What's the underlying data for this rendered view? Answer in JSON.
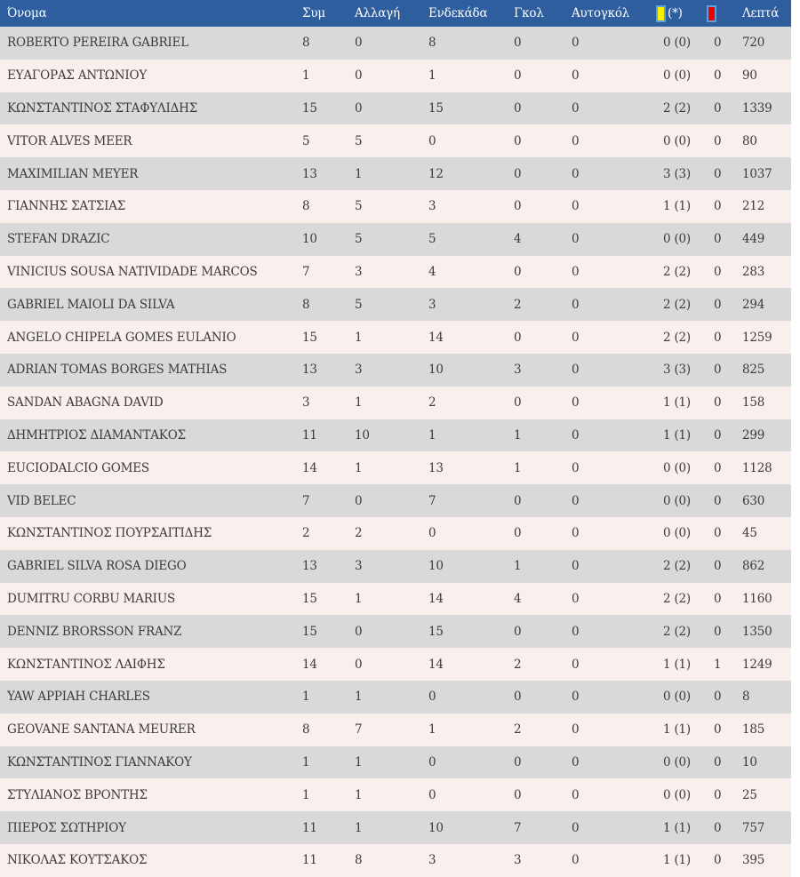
{
  "colors": {
    "header_bg": "#2e5e9e",
    "header_fg": "#ffffff",
    "row_odd": "#d9d9d9",
    "row_even": "#f9efed",
    "cell_fg": "#3b3b3b",
    "yellow_card": "#f8ee00",
    "red_card": "#ec0000",
    "card_border": "#5aa3da"
  },
  "table": {
    "header": {
      "name": "Όνομα",
      "appearances": "Συμ",
      "substitution": "Αλλαγή",
      "starting_eleven": "Ενδεκάδα",
      "goals": "Γκολ",
      "own_goals": "Αυτογκόλ",
      "yellow_cards_icon": "yellow-card-icon",
      "yellow_cards_suffix": "(*)",
      "red_cards_icon": "red-card-icon",
      "minutes": "Λεπτά"
    },
    "rows": [
      {
        "name": "ROBERTO PEREIRA GABRIEL",
        "appearances": "8",
        "substitution": "0",
        "starting_eleven": "8",
        "goals": "0",
        "own_goals": "0",
        "yellow_cards": "0 (0)",
        "red_cards": "0",
        "minutes": "720"
      },
      {
        "name": "ΕΥΑΓΟΡΑΣ ΑΝΤΩΝΙΟΥ",
        "appearances": "1",
        "substitution": "0",
        "starting_eleven": "1",
        "goals": "0",
        "own_goals": "0",
        "yellow_cards": "0 (0)",
        "red_cards": "0",
        "minutes": "90"
      },
      {
        "name": "ΚΩΝΣΤΑΝΤΙΝΟΣ ΣΤΑΦΥΛΙΔΗΣ",
        "appearances": "15",
        "substitution": "0",
        "starting_eleven": "15",
        "goals": "0",
        "own_goals": "0",
        "yellow_cards": "2 (2)",
        "red_cards": "0",
        "minutes": "1339"
      },
      {
        "name": "VITOR ALVES MEER",
        "appearances": "5",
        "substitution": "5",
        "starting_eleven": "0",
        "goals": "0",
        "own_goals": "0",
        "yellow_cards": "0 (0)",
        "red_cards": "0",
        "minutes": "80"
      },
      {
        "name": "MAXIMILIAN MEYER",
        "appearances": "13",
        "substitution": "1",
        "starting_eleven": "12",
        "goals": "0",
        "own_goals": "0",
        "yellow_cards": "3 (3)",
        "red_cards": "0",
        "minutes": "1037"
      },
      {
        "name": "ΓΙΑΝΝΗΣ ΣΑΤΣΙΑΣ",
        "appearances": "8",
        "substitution": "5",
        "starting_eleven": "3",
        "goals": "0",
        "own_goals": "0",
        "yellow_cards": "1 (1)",
        "red_cards": "0",
        "minutes": "212"
      },
      {
        "name": "STEFAN DRAZIC",
        "appearances": "10",
        "substitution": "5",
        "starting_eleven": "5",
        "goals": "4",
        "own_goals": "0",
        "yellow_cards": "0 (0)",
        "red_cards": "0",
        "minutes": "449"
      },
      {
        "name": "VINICIUS SOUSA NATIVIDADE MARCOS",
        "appearances": "7",
        "substitution": "3",
        "starting_eleven": "4",
        "goals": "0",
        "own_goals": "0",
        "yellow_cards": "2 (2)",
        "red_cards": "0",
        "minutes": "283"
      },
      {
        "name": "GABRIEL MAIOLI DA SILVA",
        "appearances": "8",
        "substitution": "5",
        "starting_eleven": "3",
        "goals": "2",
        "own_goals": "0",
        "yellow_cards": "2 (2)",
        "red_cards": "0",
        "minutes": "294"
      },
      {
        "name": "ANGELO CHIPELA GOMES EULANIO",
        "appearances": "15",
        "substitution": "1",
        "starting_eleven": "14",
        "goals": "0",
        "own_goals": "0",
        "yellow_cards": "2 (2)",
        "red_cards": "0",
        "minutes": "1259"
      },
      {
        "name": "ADRIAN TOMAS BORGES MATHIAS",
        "appearances": "13",
        "substitution": "3",
        "starting_eleven": "10",
        "goals": "3",
        "own_goals": "0",
        "yellow_cards": "3 (3)",
        "red_cards": "0",
        "minutes": "825"
      },
      {
        "name": "SANDAN ABAGNA DAVID",
        "appearances": "3",
        "substitution": "1",
        "starting_eleven": "2",
        "goals": "0",
        "own_goals": "0",
        "yellow_cards": "1 (1)",
        "red_cards": "0",
        "minutes": "158"
      },
      {
        "name": "ΔΗΜΗΤΡΙΟΣ ΔΙΑΜΑΝΤΑΚΟΣ",
        "appearances": "11",
        "substitution": "10",
        "starting_eleven": "1",
        "goals": "1",
        "own_goals": "0",
        "yellow_cards": "1 (1)",
        "red_cards": "0",
        "minutes": "299"
      },
      {
        "name": "EUCIODALCIO GOMES",
        "appearances": "14",
        "substitution": "1",
        "starting_eleven": "13",
        "goals": "1",
        "own_goals": "0",
        "yellow_cards": "0 (0)",
        "red_cards": "0",
        "minutes": "1128"
      },
      {
        "name": "VID BELEC",
        "appearances": "7",
        "substitution": "0",
        "starting_eleven": "7",
        "goals": "0",
        "own_goals": "0",
        "yellow_cards": "0 (0)",
        "red_cards": "0",
        "minutes": "630"
      },
      {
        "name": "ΚΩΝΣΤΑΝΤΙΝΟΣ ΠΟΥΡΣΑΙΤΙΔΗΣ",
        "appearances": "2",
        "substitution": "2",
        "starting_eleven": "0",
        "goals": "0",
        "own_goals": "0",
        "yellow_cards": "0 (0)",
        "red_cards": "0",
        "minutes": "45"
      },
      {
        "name": "GABRIEL SILVA ROSA DIEGO",
        "appearances": "13",
        "substitution": "3",
        "starting_eleven": "10",
        "goals": "1",
        "own_goals": "0",
        "yellow_cards": "2 (2)",
        "red_cards": "0",
        "minutes": "862"
      },
      {
        "name": "DUMITRU CORBU MARIUS",
        "appearances": "15",
        "substitution": "1",
        "starting_eleven": "14",
        "goals": "4",
        "own_goals": "0",
        "yellow_cards": "2 (2)",
        "red_cards": "0",
        "minutes": "1160"
      },
      {
        "name": "DENNIZ BRORSSON FRANZ",
        "appearances": "15",
        "substitution": "0",
        "starting_eleven": "15",
        "goals": "0",
        "own_goals": "0",
        "yellow_cards": "2 (2)",
        "red_cards": "0",
        "minutes": "1350"
      },
      {
        "name": "ΚΩΝΣΤΑΝΤΙΝΟΣ ΛΑΙΦΗΣ",
        "appearances": "14",
        "substitution": "0",
        "starting_eleven": "14",
        "goals": "2",
        "own_goals": "0",
        "yellow_cards": "1 (1)",
        "red_cards": "1",
        "minutes": "1249"
      },
      {
        "name": "YAW APPIAH CHARLES",
        "appearances": "1",
        "substitution": "1",
        "starting_eleven": "0",
        "goals": "0",
        "own_goals": "0",
        "yellow_cards": "0 (0)",
        "red_cards": "0",
        "minutes": "8"
      },
      {
        "name": "GEOVANE SANTANA MEURER",
        "appearances": "8",
        "substitution": "7",
        "starting_eleven": "1",
        "goals": "2",
        "own_goals": "0",
        "yellow_cards": "1 (1)",
        "red_cards": "0",
        "minutes": "185"
      },
      {
        "name": "ΚΩΝΣΤΑΝΤΙΝΟΣ ΓΙΑΝΝΑΚΟΥ",
        "appearances": "1",
        "substitution": "1",
        "starting_eleven": "0",
        "goals": "0",
        "own_goals": "0",
        "yellow_cards": "0 (0)",
        "red_cards": "0",
        "minutes": "10"
      },
      {
        "name": "ΣΤΥΛΙΑΝΟΣ ΒΡΟΝΤΗΣ",
        "appearances": "1",
        "substitution": "1",
        "starting_eleven": "0",
        "goals": "0",
        "own_goals": "0",
        "yellow_cards": "0 (0)",
        "red_cards": "0",
        "minutes": "25"
      },
      {
        "name": "ΠΙΕΡΟΣ ΣΩΤΗΡΙΟΥ",
        "appearances": "11",
        "substitution": "1",
        "starting_eleven": "10",
        "goals": "7",
        "own_goals": "0",
        "yellow_cards": "1 (1)",
        "red_cards": "0",
        "minutes": "757"
      },
      {
        "name": "ΝΙΚΟΛΑΣ ΚΟΥΤΣΑΚΟΣ",
        "appearances": "11",
        "substitution": "8",
        "starting_eleven": "3",
        "goals": "3",
        "own_goals": "0",
        "yellow_cards": "1 (1)",
        "red_cards": "0",
        "minutes": "395"
      }
    ]
  }
}
